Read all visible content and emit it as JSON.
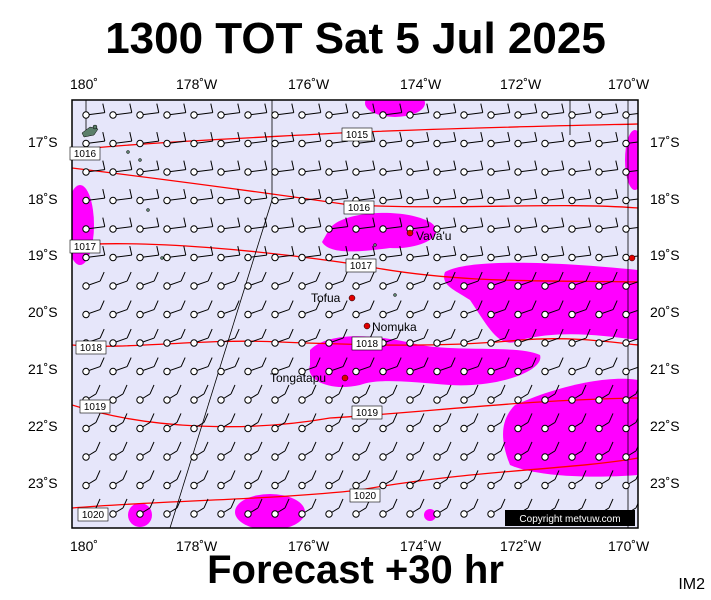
{
  "header": {
    "title": "1300 TOT Sat 5 Jul 2025"
  },
  "footer": {
    "forecast": "Forecast +30 hr",
    "model_code": "IM2"
  },
  "axes": {
    "top_lon": [
      "180˚",
      "178˚W",
      "176˚W",
      "174˚W",
      "172˚W",
      "170˚W"
    ],
    "bottom_lon": [
      "180˚",
      "178˚W",
      "176˚W",
      "174˚W",
      "172˚W",
      "170˚W"
    ],
    "left_lat": [
      "17˚S",
      "18˚S",
      "19˚S",
      "20˚S",
      "21˚S",
      "22˚S",
      "23˚S"
    ],
    "right_lat": [
      "17˚S",
      "18˚S",
      "19˚S",
      "20˚S",
      "21˚S",
      "22˚S",
      "23˚S"
    ]
  },
  "isobars": [
    {
      "label": "1015"
    },
    {
      "label": "1016"
    },
    {
      "label": "1016"
    },
    {
      "label": "1017"
    },
    {
      "label": "1017"
    },
    {
      "label": "1018"
    },
    {
      "label": "1018"
    },
    {
      "label": "1019"
    },
    {
      "label": "1019"
    },
    {
      "label": "1020"
    },
    {
      "label": "1020"
    }
  ],
  "places": [
    {
      "name": "Vava'u"
    },
    {
      "name": "Tofua"
    },
    {
      "name": "Nomuka"
    },
    {
      "name": "Tongatapu"
    }
  ],
  "copyright": "Copyright metvuw.com",
  "colors": {
    "background_sea": "#e6e6fa",
    "rain": "#ff00ff",
    "isobar": "#ff0000",
    "marker": "#e00000"
  }
}
